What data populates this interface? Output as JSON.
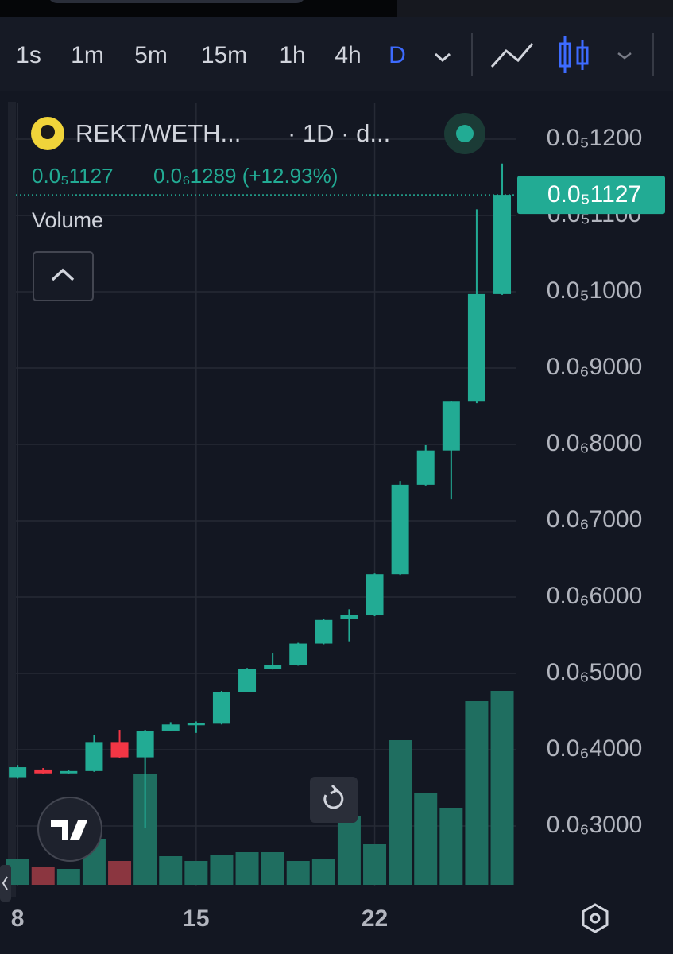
{
  "toolbar": {
    "timeframes": [
      "1s",
      "1m",
      "5m",
      "15m",
      "1h",
      "4h",
      "D"
    ],
    "active": "D"
  },
  "chart_data": {
    "type": "candlestick",
    "title": "REKT/WETH...",
    "subtitle": "· 1D · d...",
    "last_price_label": "0.0₅1127",
    "change_label": "0.0₆1289 (+12.93%)",
    "volume_label": "Volume",
    "x": [
      8,
      9,
      10,
      11,
      12,
      13,
      14,
      15,
      16,
      17,
      18,
      19,
      20,
      21,
      22,
      23,
      24,
      25,
      26,
      27
    ],
    "open": [
      3.64e-07,
      3.74e-07,
      3.69e-07,
      3.72e-07,
      4.1e-07,
      3.9e-07,
      4.25e-07,
      4.32e-07,
      4.34e-07,
      4.76e-07,
      5.06e-07,
      5.11e-07,
      5.39e-07,
      5.71e-07,
      5.76e-07,
      6.3e-07,
      7.47e-07,
      7.92e-07,
      8.56e-07,
      9.97e-07
    ],
    "high": [
      3.8e-07,
      3.76e-07,
      3.73e-07,
      4.19e-07,
      4.26e-07,
      4.26e-07,
      4.36e-07,
      4.37e-07,
      4.77e-07,
      5.07e-07,
      5.26e-07,
      5.4e-07,
      5.71e-07,
      5.84e-07,
      6.31e-07,
      7.52e-07,
      7.99e-07,
      8.57e-07,
      1.108e-06,
      1.168e-06
    ],
    "low": [
      3.62e-07,
      3.68e-07,
      3.68e-07,
      3.71e-07,
      3.89e-07,
      2.97e-07,
      4.24e-07,
      4.22e-07,
      4.33e-07,
      4.75e-07,
      5.05e-07,
      5.1e-07,
      5.38e-07,
      5.42e-07,
      5.75e-07,
      6.29e-07,
      7.46e-07,
      7.28e-07,
      8.54e-07,
      9.96e-07
    ],
    "close": [
      3.77e-07,
      3.69e-07,
      3.72e-07,
      4.1e-07,
      3.9e-07,
      4.24e-07,
      4.33e-07,
      4.35e-07,
      4.76e-07,
      5.06e-07,
      5.11e-07,
      5.39e-07,
      5.7e-07,
      5.77e-07,
      6.3e-07,
      7.47e-07,
      7.92e-07,
      8.56e-07,
      9.97e-07,
      1.127e-06
    ],
    "volume": [
      33,
      23,
      20,
      58,
      30,
      140,
      36,
      30,
      37,
      41,
      41,
      30,
      33,
      86,
      51,
      182,
      115,
      97,
      231,
      244
    ],
    "up_color": "#22ab94",
    "down_color": "#f23645",
    "volume_up_color": "#1f6e60",
    "volume_down_color": "#8b3640",
    "xlim": [
      7.31,
      27.56
    ],
    "xticks": [
      8,
      15,
      22
    ],
    "ylim": [
      2.208e-07,
      1.2469e-06
    ],
    "yticks": [
      {
        "value": 1.2e-06,
        "label": "0.0₅1200"
      },
      {
        "value": 1.1e-06,
        "label": "0.0₅1100"
      },
      {
        "value": 1e-06,
        "label": "0.0₅1000"
      },
      {
        "value": 9e-07,
        "label": "0.0₆9000"
      },
      {
        "value": 8e-07,
        "label": "0.0₆8000"
      },
      {
        "value": 7e-07,
        "label": "0.0₆7000"
      },
      {
        "value": 6e-07,
        "label": "0.0₆6000"
      },
      {
        "value": 5e-07,
        "label": "0.0₆5000"
      },
      {
        "value": 4e-07,
        "label": "0.0₆4000"
      },
      {
        "value": 3e-07,
        "label": "0.0₆3000"
      }
    ],
    "grid": true
  }
}
